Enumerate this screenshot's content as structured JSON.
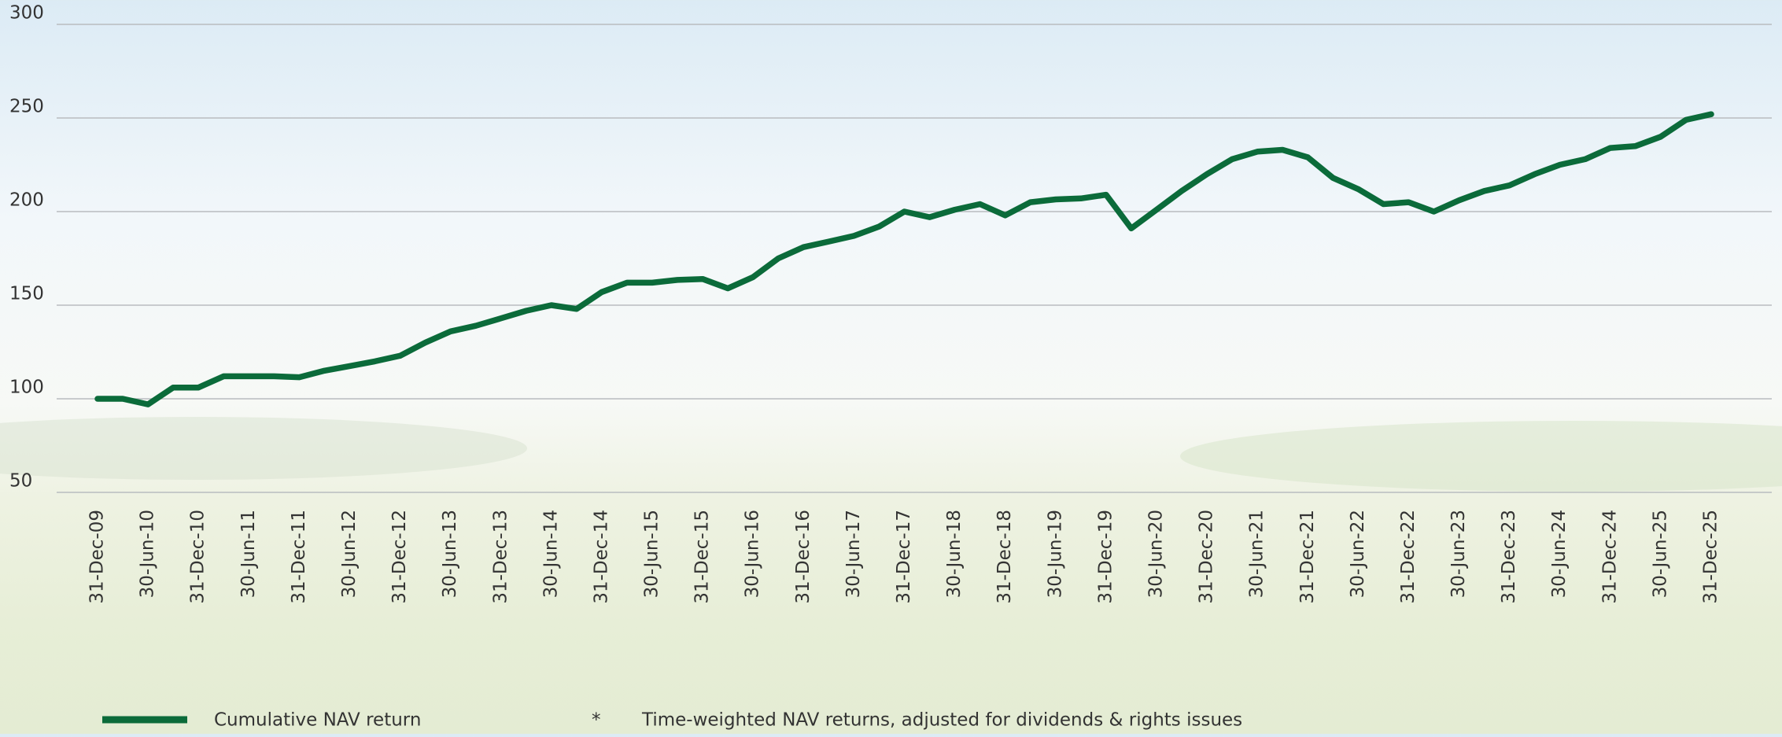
{
  "chart_data": {
    "type": "line",
    "categories": [
      "31-Dec-09",
      null,
      "30-Jun-10",
      null,
      "31-Dec-10",
      null,
      "30-Jun-11",
      null,
      "31-Dec-11",
      null,
      "30-Jun-12",
      null,
      "31-Dec-12",
      null,
      "30-Jun-13",
      null,
      "31-Dec-13",
      null,
      "30-Jun-14",
      null,
      "31-Dec-14",
      null,
      "30-Jun-15",
      null,
      "31-Dec-15",
      null,
      "30-Jun-16",
      null,
      "31-Dec-16",
      null,
      "30-Jun-17",
      null,
      "31-Dec-17",
      null,
      "30-Jun-18",
      null,
      "31-Dec-18",
      null,
      "30-Jun-19",
      null,
      "31-Dec-19",
      null,
      "30-Jun-20",
      null,
      "31-Dec-20",
      null,
      "30-Jun-21",
      null,
      "31-Dec-21",
      null,
      "30-Jun-22",
      null,
      "31-Dec-22",
      null,
      "30-Jun-23",
      null,
      "31-Dec-23",
      null,
      "30-Jun-24",
      null,
      "31-Dec-24",
      null,
      "30-Jun-25",
      null,
      "31-Dec-25"
    ],
    "series": [
      {
        "name": "Cumulative NAV return",
        "color": "#0b6b3a",
        "values": [
          100,
          100,
          97,
          106,
          106,
          112,
          112,
          112,
          111.5,
          115,
          117.5,
          120,
          123,
          130,
          136,
          139,
          143,
          147,
          150,
          148,
          157,
          162,
          162,
          163.5,
          164,
          159,
          165,
          175,
          181,
          184,
          187,
          192,
          200,
          197,
          201,
          204,
          198,
          205,
          206.5,
          207,
          209,
          191,
          201,
          211,
          220,
          228,
          232,
          233,
          229,
          218,
          212,
          204,
          205,
          200,
          206,
          211,
          214,
          220,
          225,
          228,
          234,
          235,
          240,
          249,
          252
        ]
      }
    ],
    "ylim": [
      50,
      300
    ],
    "yticks": [
      50,
      100,
      150,
      200,
      250,
      300
    ],
    "grid": true,
    "footnote": {
      "marker": "*",
      "text": "Time-weighted NAV returns, adjusted for dividends & rights issues"
    }
  }
}
